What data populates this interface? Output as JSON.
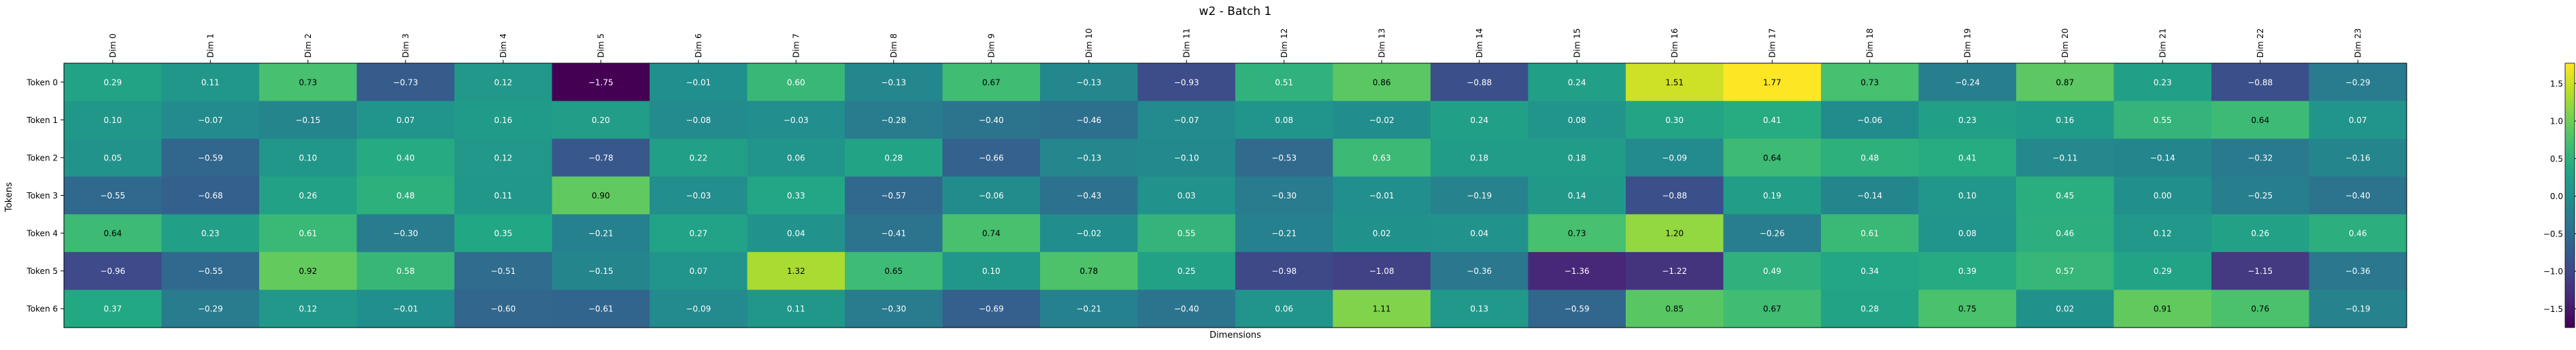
{
  "chart_data": {
    "type": "heatmap",
    "title": "w2 - Batch 1",
    "xlabel": "Dimensions",
    "ylabel": "Tokens",
    "x_categories": [
      "Dim 0",
      "Dim 1",
      "Dim 2",
      "Dim 3",
      "Dim 4",
      "Dim 5",
      "Dim 6",
      "Dim 7",
      "Dim 8",
      "Dim 9",
      "Dim 10",
      "Dim 11",
      "Dim 12",
      "Dim 13",
      "Dim 14",
      "Dim 15",
      "Dim 16",
      "Dim 17",
      "Dim 18",
      "Dim 19",
      "Dim 20",
      "Dim 21",
      "Dim 22",
      "Dim 23"
    ],
    "y_categories": [
      "Token 0",
      "Token 1",
      "Token 2",
      "Token 3",
      "Token 4",
      "Token 5",
      "Token 6"
    ],
    "values": [
      [
        0.29,
        0.11,
        0.73,
        -0.73,
        0.12,
        -1.75,
        -0.01,
        0.6,
        -0.13,
        0.67,
        -0.13,
        -0.93,
        0.51,
        0.86,
        -0.88,
        0.24,
        1.51,
        1.77,
        0.73,
        -0.24,
        0.87,
        0.23,
        -0.88,
        -0.29
      ],
      [
        0.1,
        -0.07,
        -0.15,
        0.07,
        0.16,
        0.2,
        -0.08,
        -0.03,
        -0.28,
        -0.4,
        -0.46,
        -0.07,
        0.08,
        -0.02,
        0.24,
        0.08,
        0.3,
        0.41,
        -0.06,
        0.23,
        0.16,
        0.55,
        0.64,
        0.07
      ],
      [
        0.05,
        -0.59,
        0.1,
        0.4,
        0.12,
        -0.78,
        0.22,
        0.06,
        0.28,
        -0.66,
        -0.13,
        -0.1,
        -0.53,
        0.63,
        0.18,
        0.18,
        -0.09,
        0.64,
        0.48,
        0.41,
        -0.11,
        -0.14,
        -0.32,
        -0.16
      ],
      [
        -0.55,
        -0.68,
        0.26,
        0.48,
        0.11,
        0.9,
        -0.03,
        0.33,
        -0.57,
        -0.06,
        -0.43,
        0.03,
        -0.3,
        -0.01,
        -0.19,
        0.14,
        -0.88,
        0.19,
        -0.14,
        0.1,
        0.45,
        -0.0,
        -0.25,
        -0.4
      ],
      [
        0.64,
        0.23,
        0.61,
        -0.3,
        0.35,
        -0.21,
        0.27,
        0.04,
        -0.41,
        0.74,
        -0.02,
        0.55,
        -0.21,
        0.02,
        0.04,
        0.73,
        1.2,
        -0.26,
        0.61,
        0.08,
        0.46,
        0.12,
        0.26,
        0.46
      ],
      [
        -0.96,
        -0.55,
        0.92,
        0.58,
        -0.51,
        -0.15,
        0.07,
        1.32,
        0.65,
        0.1,
        0.78,
        0.25,
        -0.98,
        -1.08,
        -0.36,
        -1.36,
        -1.22,
        0.49,
        0.34,
        0.39,
        0.57,
        0.29,
        -1.15,
        -0.36
      ],
      [
        0.37,
        -0.29,
        0.12,
        -0.01,
        -0.6,
        -0.61,
        -0.09,
        0.11,
        -0.3,
        -0.69,
        -0.21,
        -0.4,
        0.06,
        1.11,
        0.13,
        -0.59,
        0.85,
        0.67,
        0.28,
        0.75,
        0.02,
        0.91,
        0.76,
        -0.19
      ]
    ],
    "value_format": "0.00",
    "colormap": "viridis",
    "vmin": -1.75,
    "vmax": 1.77,
    "colorbar_ticks": [
      -1.5,
      -1.0,
      -0.5,
      0.0,
      0.5,
      1.0,
      1.5
    ],
    "colorbar_tick_labels": [
      "−1.5",
      "−1.0",
      "−0.5",
      "0.0",
      "0.5",
      "1.0",
      "1.5"
    ],
    "grid": false,
    "legend": "colorbar-right"
  }
}
